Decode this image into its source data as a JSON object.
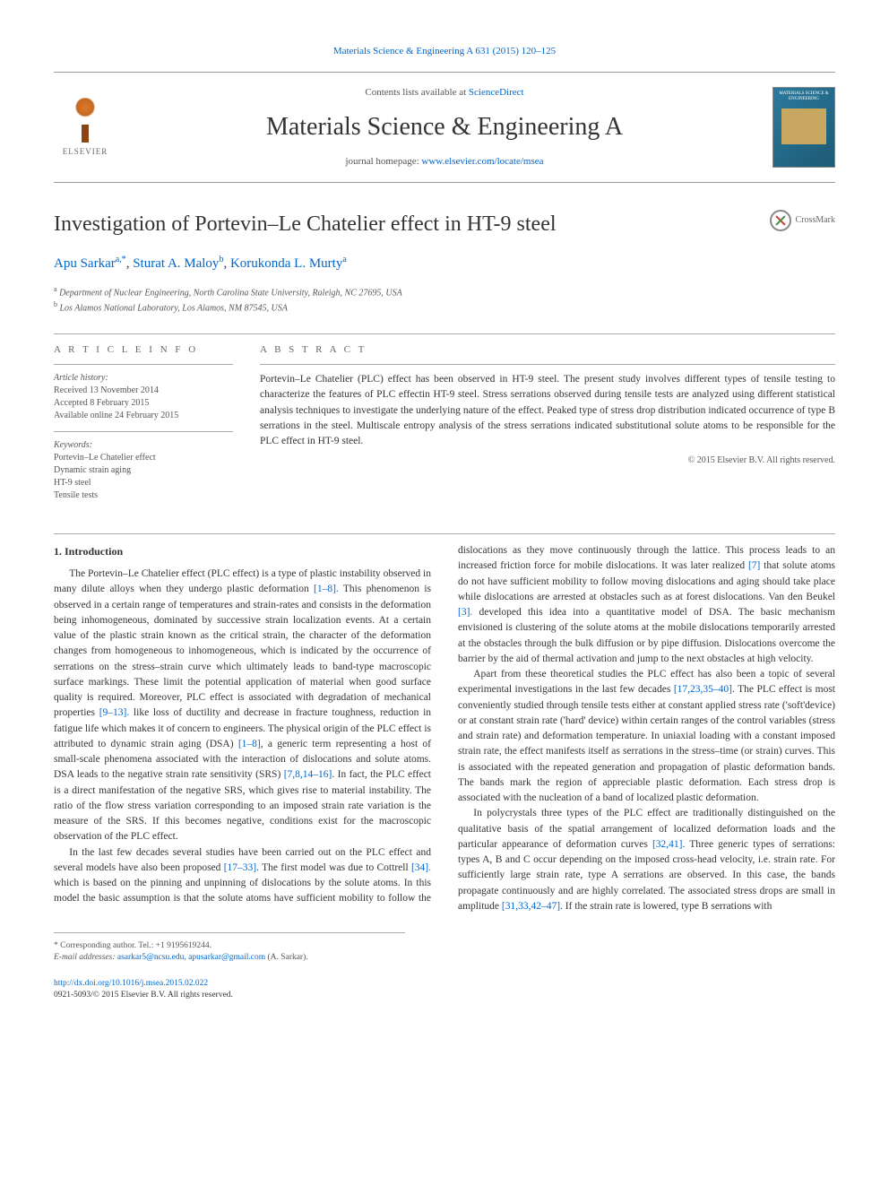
{
  "top_link": {
    "prefix": "",
    "journal": "Materials Science & Engineering A 631 (2015) 120–125"
  },
  "header": {
    "contents_prefix": "Contents lists available at ",
    "contents_link": "ScienceDirect",
    "journal_title": "Materials Science & Engineering A",
    "homepage_prefix": "journal homepage: ",
    "homepage_link": "www.elsevier.com/locate/msea",
    "elsevier_label": "ELSEVIER",
    "cover_title": "MATERIALS SCIENCE & ENGINEERING"
  },
  "article": {
    "title": "Investigation of Portevin–Le Chatelier effect in HT-9 steel",
    "crossmark": "CrossMark",
    "authors_html": "Apu Sarkar",
    "author1": "Apu Sarkar",
    "author1_sup": "a,*",
    "author2": "Sturat A. Maloy",
    "author2_sup": "b",
    "author3": "Korukonda L. Murty",
    "author3_sup": "a",
    "aff_a": "Department of Nuclear Engineering, North Carolina State University, Raleigh, NC 27695, USA",
    "aff_b": "Los Alamos National Laboratory, Los Alamos, NM 87545, USA"
  },
  "info": {
    "header": "A R T I C L E  I N F O",
    "history_label": "Article history:",
    "received": "Received 13 November 2014",
    "accepted": "Accepted 8 February 2015",
    "online": "Available online 24 February 2015",
    "keywords_label": "Keywords:",
    "kw1": "Portevin–Le Chatelier effect",
    "kw2": "Dynamic strain aging",
    "kw3": "HT-9 steel",
    "kw4": "Tensile tests"
  },
  "abstract": {
    "header": "A B S T R A C T",
    "text": "Portevin–Le Chatelier (PLC) effect has been observed in HT-9 steel. The present study involves different types of tensile testing to characterize the features of PLC effectin HT-9 steel. Stress serrations observed during tensile tests are analyzed using different statistical analysis techniques to investigate the underlying nature of the effect. Peaked type of stress drop distribution indicated occurrence of type B serrations in the steel. Multiscale entropy analysis of the stress serrations indicated substitutional solute atoms to be responsible for the PLC effect in HT-9 steel.",
    "copyright": "© 2015 Elsevier B.V. All rights reserved."
  },
  "body": {
    "section1_heading": "1. Introduction",
    "p1": "The Portevin–Le Chatelier effect (PLC effect) is a type of plastic instability observed in many dilute alloys when they undergo plastic deformation ",
    "cite1": "[1–8].",
    "p1b": " This phenomenon is observed in a certain range of temperatures and strain-rates and consists in the deformation being inhomogeneous, dominated by successive strain localization events. At a certain value of the plastic strain known as the critical strain, the character of the deformation changes from homogeneous to inhomogeneous, which is indicated by the occurrence of serrations on the stress–strain curve which ultimately leads to band-type macroscopic surface markings. These limit the potential application of material when good surface quality is required. Moreover, PLC effect is associated with degradation of mechanical properties ",
    "cite2": "[9–13].",
    "p1c": " like loss of ductility and decrease in fracture toughness, reduction in fatigue life which makes it of concern to engineers. The physical origin of the PLC effect is attributed to dynamic strain aging (DSA) ",
    "cite3": "[1–8]",
    "p1d": ", a generic term representing a host of small-scale phenomena associated with the interaction of dislocations and solute atoms. DSA leads to the negative strain rate sensitivity (SRS) ",
    "cite4": "[7,8,14–16]",
    "p1e": ". In fact, the PLC effect is a direct manifestation of the negative SRS, which gives rise to material instability. The ratio of the flow stress variation corresponding to an imposed strain rate variation is the measure of the SRS. If this becomes negative, conditions exist for the macroscopic observation of the PLC effect.",
    "p2a": "In the last few decades several studies have been carried out on the PLC effect and several models have also been proposed ",
    "cite5": "[17–33]",
    "p2b": ". The first model was due to Cottrell ",
    "cite6": "[34].",
    "p2c": " which is based on the pinning and unpinning of dislocations by the solute atoms. In this model the basic assumption is that the solute atoms have sufficient mobility to follow the dislocations as they move continuously through the lattice. This process leads to an increased friction force for mobile dislocations. It was later realized ",
    "cite7": "[7]",
    "p2d": " that solute atoms do not have sufficient mobility to follow moving dislocations and aging should take place while dislocations are arrested at obstacles such as at forest dislocations. Van den Beukel ",
    "cite8": "[3].",
    "p2e": " developed this idea into a quantitative model of DSA. The basic mechanism envisioned is clustering of the solute atoms at the mobile dislocations temporarily arrested at the obstacles through the bulk diffusion or by pipe diffusion. Dislocations overcome the barrier by the aid of thermal activation and jump to the next obstacles at high velocity.",
    "p3a": "Apart from these theoretical studies the PLC effect has also been a topic of several experimental investigations in the last few decades ",
    "cite9": "[17,23,35–40]",
    "p3b": ". The PLC effect is most conveniently studied through tensile tests either at constant applied stress rate ('soft'device) or at constant strain rate ('hard' device) within certain ranges of the control variables (stress and strain rate) and deformation temperature. In uniaxial loading with a constant imposed strain rate, the effect manifests itself as serrations in the stress–time (or strain) curves. This is associated with the repeated generation and propagation of plastic deformation bands. The bands mark the region of appreciable plastic deformation. Each stress drop is associated with the nucleation of a band of localized plastic deformation.",
    "p4a": "In polycrystals three types of the PLC effect are traditionally distinguished on the qualitative basis of the spatial arrangement of localized deformation loads and the particular appearance of deformation curves ",
    "cite10": "[32,41]",
    "p4b": ". Three generic types of serrations: types A, B and C occur depending on the imposed cross-head velocity, i.e. strain rate. For sufficiently large strain rate, type A serrations are observed. In this case, the bands propagate continuously and are highly correlated. The associated stress drops are small in amplitude ",
    "cite11": "[31,33,42–47]",
    "p4c": ". If the strain rate is lowered, type B serrations with"
  },
  "footer": {
    "corresponding": "* Corresponding author. Tel.: +1 9195619244.",
    "email_label": "E-mail addresses: ",
    "email1": "asarkar5@ncsu.edu",
    "email_sep": ", ",
    "email2": "apusarkar@gmail.com",
    "email_suffix": " (A. Sarkar).",
    "doi": "http://dx.doi.org/10.1016/j.msea.2015.02.022",
    "issn": "0921-5093/© 2015 Elsevier B.V. All rights reserved."
  },
  "colors": {
    "link": "#0066cc",
    "text": "#333333",
    "muted": "#555555",
    "border": "#aaaaaa"
  }
}
